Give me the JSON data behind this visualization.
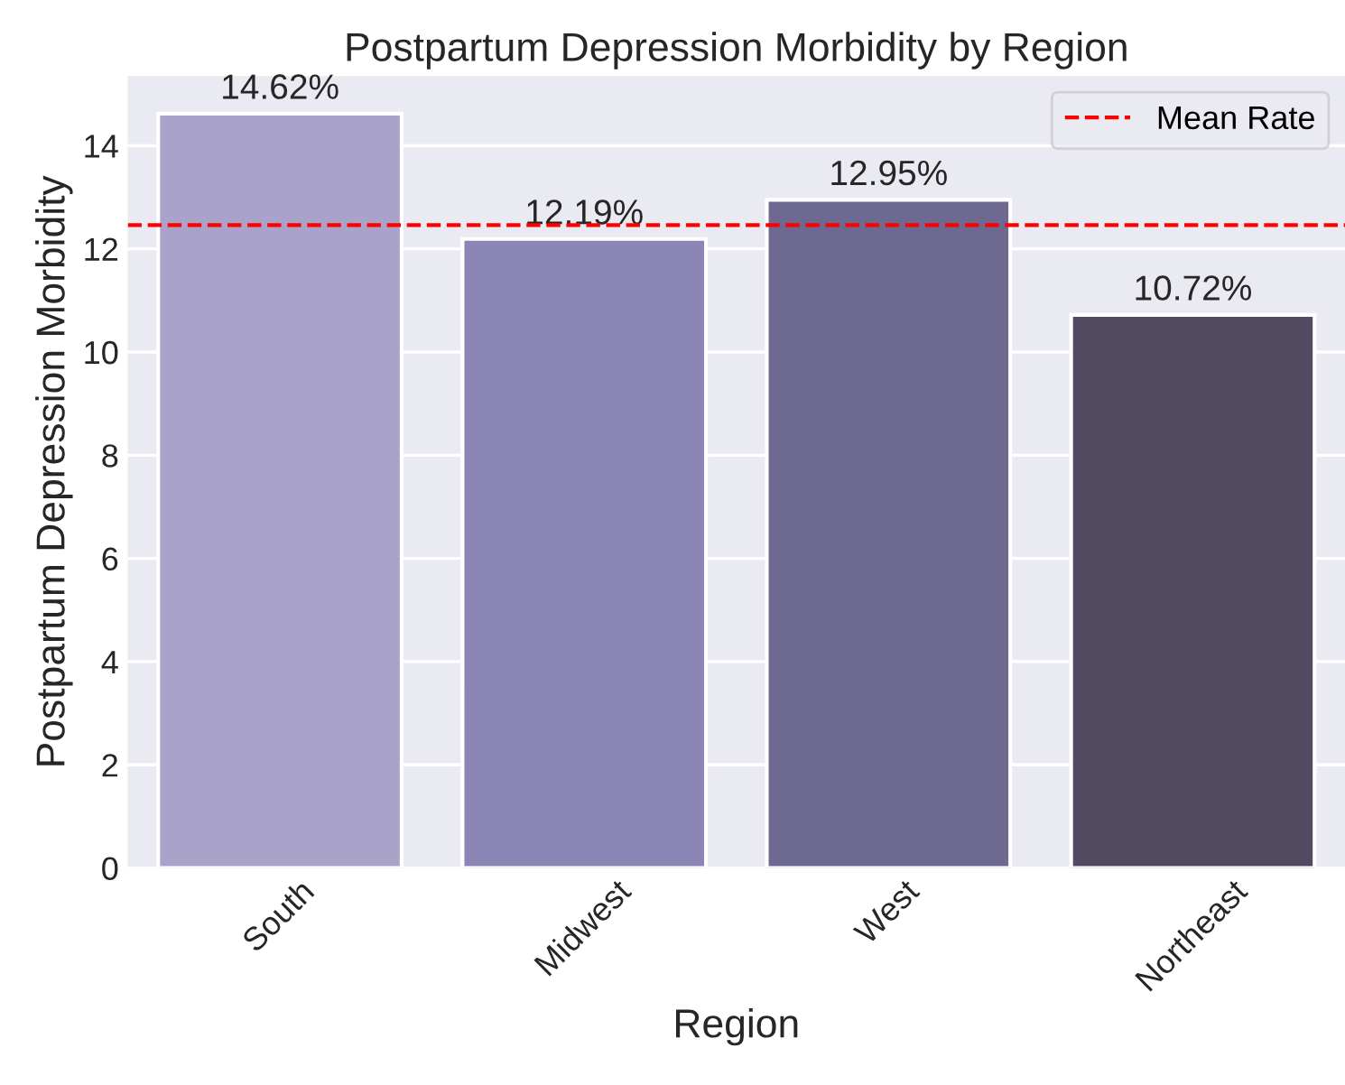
{
  "chart_data": {
    "type": "bar",
    "title": "Postpartum Depression Morbidity by Region",
    "xlabel": "Region",
    "ylabel": "Postpartum Depression Morbidity",
    "categories": [
      "South",
      "Midwest",
      "West",
      "Northeast"
    ],
    "values": [
      14.62,
      12.19,
      12.95,
      10.72
    ],
    "colors": [
      "#a9a3c9",
      "#8b85b5",
      "#6e6990",
      "#514a60"
    ],
    "value_labels": [
      "14.62%",
      "12.19%",
      "12.95%",
      "10.72%"
    ],
    "ylim": [
      0,
      15.35
    ],
    "yticks": [
      0,
      2,
      4,
      6,
      8,
      10,
      12,
      14
    ],
    "ref_lines": [
      {
        "axis": "y",
        "value": 12.46,
        "label": "Mean Rate",
        "color": "#ff0000",
        "line_style": "dashed"
      }
    ],
    "grid": "y",
    "legend": "top right"
  }
}
